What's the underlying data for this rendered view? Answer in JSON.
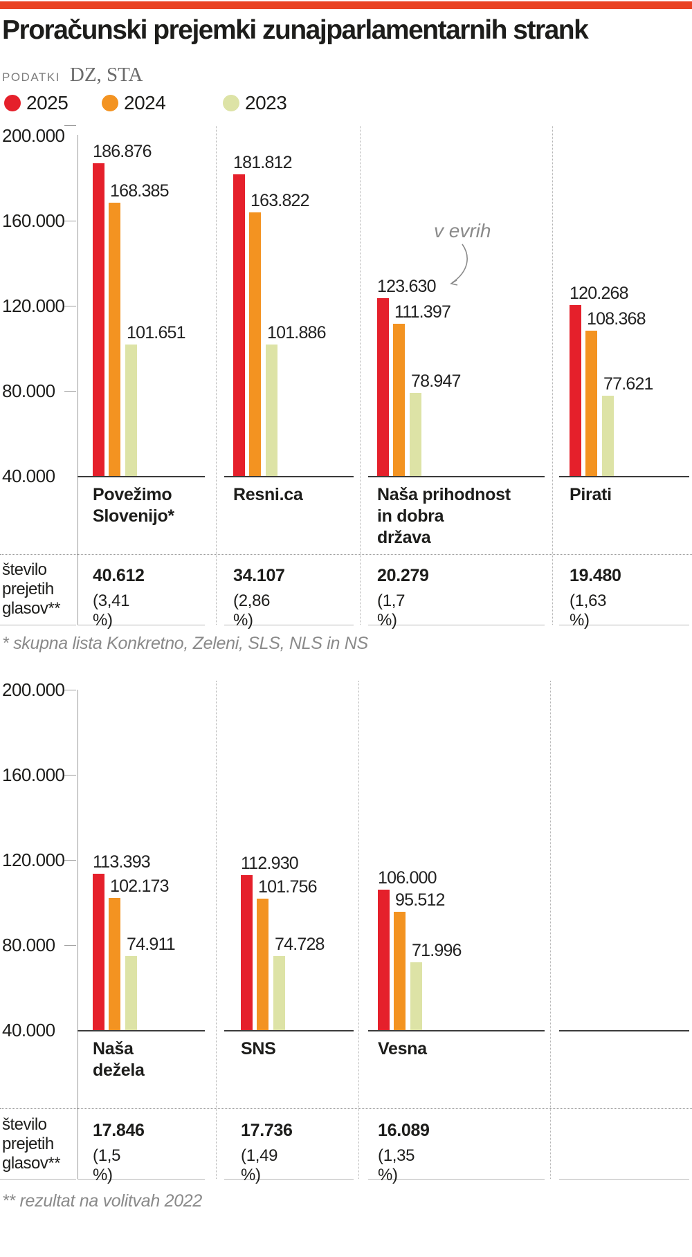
{
  "page": {
    "title": "Proračunski prejemki zunajparlamentarnih strank",
    "source_label": "PODATKI",
    "source_value": "DZ, STA"
  },
  "colors": {
    "accent_strip": "#e94323",
    "bar_2025": "#e5202b",
    "bar_2024": "#f39321",
    "bar_2023": "#dde3a6"
  },
  "legend": [
    {
      "label": "2025",
      "color": "#e5202b"
    },
    {
      "label": "2024",
      "color": "#f39321"
    },
    {
      "label": "2023",
      "color": "#dde3a6"
    }
  ],
  "chart_data": [
    {
      "type": "bar",
      "unit_annotation": "v evrih",
      "ylim": [
        40000,
        200000
      ],
      "yticks": [
        200000,
        160000,
        120000,
        80000,
        40000
      ],
      "ytick_labels": [
        "200.000",
        "160.000",
        "120.000",
        "80.000",
        "40.000"
      ],
      "series_names": [
        "2025",
        "2024",
        "2023"
      ],
      "votes_row_label": "število prejetih glasov**",
      "votes_row_label_lines": [
        "število",
        "prejetih",
        "glasov**"
      ],
      "footnote": "* skupna lista Konkretno, Zeleni, SLS, NLS in NS",
      "groups": [
        {
          "category": "Povežimo Slovenijo*",
          "category_lines": [
            "Povežimo",
            "Slovenijo*"
          ],
          "values": [
            186876,
            168385,
            101651
          ],
          "value_labels": [
            "186.876",
            "168.385",
            "101.651"
          ],
          "votes": "40.612",
          "votes_pct": "(3,41 %)"
        },
        {
          "category": "Resni.ca",
          "category_lines": [
            "Resni.ca"
          ],
          "values": [
            181812,
            163822,
            101886
          ],
          "value_labels": [
            "181.812",
            "163.822",
            "101.886"
          ],
          "votes": "34.107",
          "votes_pct": "(2,86 %)"
        },
        {
          "category": "Naša prihodnost in dobra država",
          "category_lines": [
            "Naša prihodnost",
            "in dobra",
            "država"
          ],
          "values": [
            123630,
            111397,
            78947
          ],
          "value_labels": [
            "123.630",
            "111.397",
            "78.947"
          ],
          "votes": "20.279",
          "votes_pct": "(1,7 %)"
        },
        {
          "category": "Pirati",
          "category_lines": [
            "Pirati"
          ],
          "values": [
            120268,
            108368,
            77621
          ],
          "value_labels": [
            "120.268",
            "108.368",
            "77.621"
          ],
          "votes": "19.480",
          "votes_pct": "(1,63 %)"
        }
      ]
    },
    {
      "type": "bar",
      "ylim": [
        40000,
        200000
      ],
      "yticks": [
        200000,
        160000,
        120000,
        80000,
        40000
      ],
      "ytick_labels": [
        "200.000",
        "160.000",
        "120.000",
        "80.000",
        "40.000"
      ],
      "series_names": [
        "2025",
        "2024",
        "2023"
      ],
      "votes_row_label": "število prejetih glasov**",
      "votes_row_label_lines": [
        "število",
        "prejetih",
        "glasov**"
      ],
      "footnote": "** rezultat na volitvah 2022",
      "groups": [
        {
          "category": "Naša dežela",
          "category_lines": [
            "Naša",
            "dežela"
          ],
          "values": [
            113393,
            102173,
            74911
          ],
          "value_labels": [
            "113.393",
            "102.173",
            "74.911"
          ],
          "votes": "17.846",
          "votes_pct": "(1,5 %)"
        },
        {
          "category": "SNS",
          "category_lines": [
            "SNS"
          ],
          "values": [
            112930,
            101756,
            74728
          ],
          "value_labels": [
            "112.930",
            "101.756",
            "74.728"
          ],
          "votes": "17.736",
          "votes_pct": "(1,49 %)"
        },
        {
          "category": "Vesna",
          "category_lines": [
            "Vesna"
          ],
          "values": [
            106000,
            95512,
            71996
          ],
          "value_labels": [
            "106.000",
            "95.512",
            "71.996"
          ],
          "votes": "16.089",
          "votes_pct": "(1,35 %)"
        }
      ]
    }
  ]
}
